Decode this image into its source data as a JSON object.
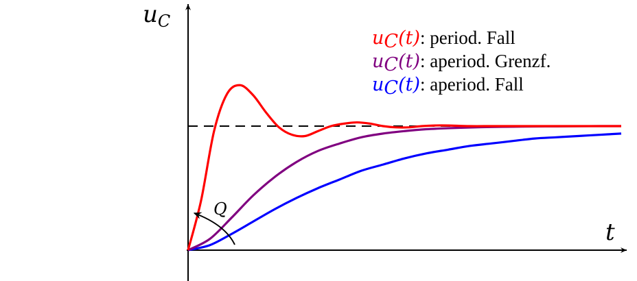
{
  "chart_data": {
    "type": "line",
    "title": "",
    "xlabel": "t",
    "ylabel": "u",
    "ylabel_sub": "C",
    "xlim": [
      0,
      10
    ],
    "ylim": [
      0,
      1.3
    ],
    "grid": false,
    "legend_placement": "top-right",
    "reference_line": {
      "y": 1.0,
      "style": "dashed"
    },
    "annotation": {
      "text": "Q",
      "target": "initial slope"
    },
    "series": [
      {
        "name": ": period. Fall",
        "legend_var": "u",
        "legend_sub": "C",
        "legend_arg": "(t)",
        "color": "#ff0000",
        "x": [
          0,
          0.3,
          0.6,
          0.9,
          1.2,
          1.5,
          1.8,
          2.1,
          2.4,
          2.7,
          3.0,
          3.3,
          3.6,
          3.9,
          4.2,
          4.5,
          4.8,
          5.1,
          5.4,
          5.7,
          6.0,
          6.5,
          7.0,
          7.5,
          8.0,
          8.5,
          9.0,
          9.5,
          10.0
        ],
        "y": [
          0,
          0.4,
          0.96,
          1.26,
          1.33,
          1.25,
          1.11,
          0.99,
          0.93,
          0.92,
          0.96,
          1.0,
          1.02,
          1.03,
          1.02,
          1.0,
          0.99,
          0.99,
          1.0,
          1.005,
          1.005,
          1.0,
          1.0,
          1.0,
          1.0,
          1.0,
          1.0,
          1.0,
          1.0
        ]
      },
      {
        "name": ": aperiod. Grenzf.",
        "legend_var": "u",
        "legend_sub": "C",
        "legend_arg": "(t)",
        "color": "#800080",
        "x": [
          0,
          0.5,
          1.0,
          1.5,
          2.0,
          2.5,
          3.0,
          3.5,
          4.0,
          4.5,
          5.0,
          5.5,
          6.0,
          6.5,
          7.0,
          7.5,
          8.0,
          8.5,
          9.0,
          9.5,
          10.0
        ],
        "y": [
          0,
          0.09,
          0.26,
          0.44,
          0.59,
          0.71,
          0.8,
          0.86,
          0.91,
          0.94,
          0.96,
          0.975,
          0.983,
          0.989,
          0.993,
          0.995,
          0.997,
          0.998,
          0.999,
          1.0,
          1.0
        ]
      },
      {
        "name": ": aperiod. Fall",
        "legend_var": "u",
        "legend_sub": "C",
        "legend_arg": "(t)",
        "color": "#0000ff",
        "x": [
          0,
          0.5,
          1.0,
          1.5,
          2.0,
          2.5,
          3.0,
          3.5,
          4.0,
          4.5,
          5.0,
          5.5,
          6.0,
          6.5,
          7.0,
          7.5,
          8.0,
          8.5,
          9.0,
          9.5,
          10.0
        ],
        "y": [
          0,
          0.04,
          0.13,
          0.23,
          0.33,
          0.42,
          0.5,
          0.57,
          0.64,
          0.69,
          0.74,
          0.78,
          0.81,
          0.84,
          0.86,
          0.88,
          0.9,
          0.91,
          0.92,
          0.93,
          0.94
        ]
      }
    ]
  }
}
